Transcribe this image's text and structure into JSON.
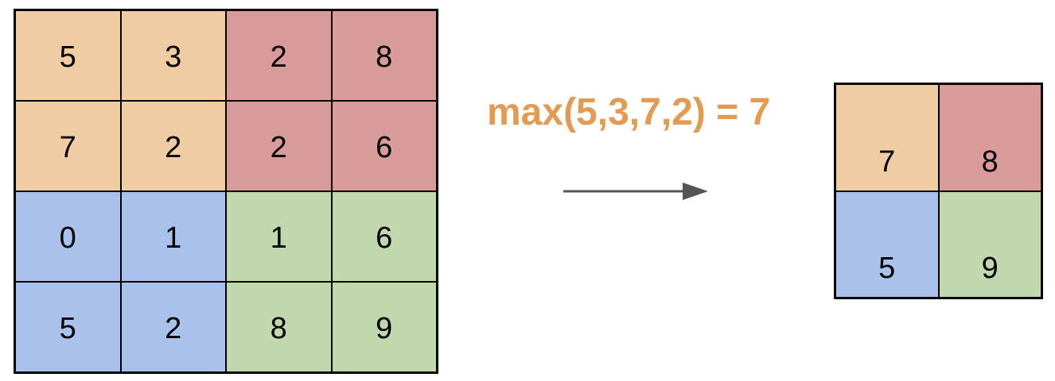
{
  "colors": {
    "orange": "#efcca4",
    "red": "#d99b9a",
    "blue": "#aac1ec",
    "green": "#c1d7ae",
    "formula": "#e19b54",
    "arrow": "#555555"
  },
  "input_grid": {
    "rows": [
      [
        {
          "value": "5",
          "color": "orange"
        },
        {
          "value": "3",
          "color": "orange"
        },
        {
          "value": "2",
          "color": "red"
        },
        {
          "value": "8",
          "color": "red"
        }
      ],
      [
        {
          "value": "7",
          "color": "orange"
        },
        {
          "value": "2",
          "color": "orange"
        },
        {
          "value": "2",
          "color": "red"
        },
        {
          "value": "6",
          "color": "red"
        }
      ],
      [
        {
          "value": "0",
          "color": "blue"
        },
        {
          "value": "1",
          "color": "blue"
        },
        {
          "value": "1",
          "color": "green"
        },
        {
          "value": "6",
          "color": "green"
        }
      ],
      [
        {
          "value": "5",
          "color": "blue"
        },
        {
          "value": "2",
          "color": "blue"
        },
        {
          "value": "8",
          "color": "green"
        },
        {
          "value": "9",
          "color": "green"
        }
      ]
    ]
  },
  "formula": "max(5,3,7,2) = 7",
  "output_grid": {
    "rows": [
      [
        {
          "value": "7",
          "color": "orange"
        },
        {
          "value": "8",
          "color": "red"
        }
      ],
      [
        {
          "value": "5",
          "color": "blue"
        },
        {
          "value": "9",
          "color": "green"
        }
      ]
    ]
  }
}
